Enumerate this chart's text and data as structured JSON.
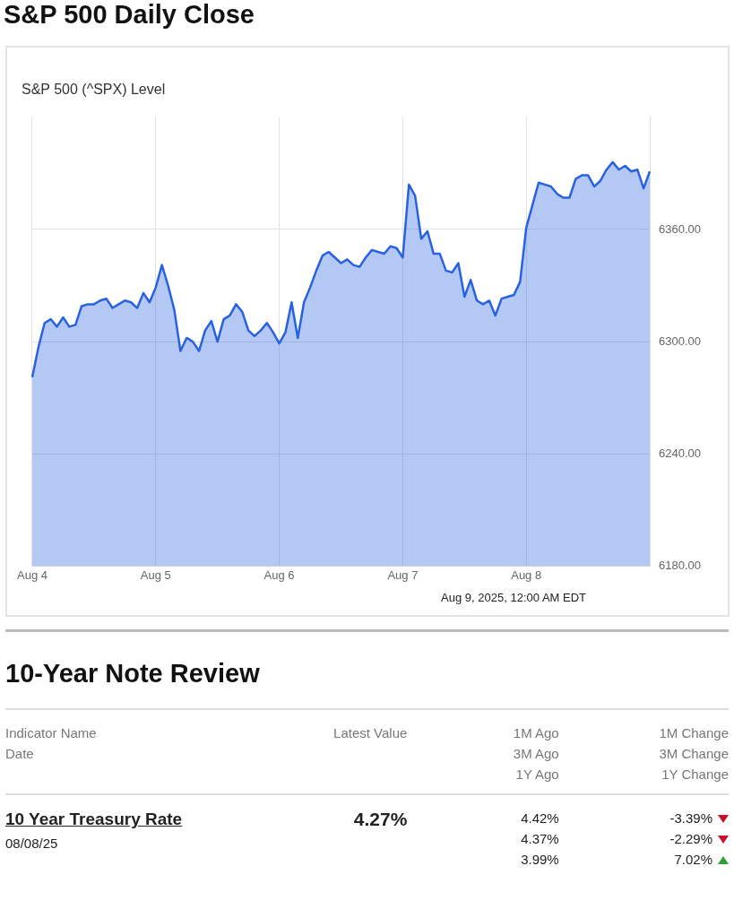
{
  "chart_data": [
    {
      "type": "area",
      "title": "S&P 500 Daily Close",
      "subtitle": "S&P 500 (^SPX) Level",
      "categories": [
        "Aug 4",
        null,
        null,
        null,
        null,
        null,
        null,
        null,
        null,
        null,
        null,
        null,
        null,
        null,
        null,
        null,
        null,
        null,
        null,
        null,
        "Aug 5",
        null,
        null,
        null,
        null,
        null,
        null,
        null,
        null,
        null,
        null,
        null,
        null,
        null,
        null,
        null,
        null,
        null,
        null,
        null,
        "Aug 6",
        null,
        null,
        null,
        null,
        null,
        null,
        null,
        null,
        null,
        null,
        null,
        null,
        null,
        null,
        null,
        null,
        null,
        null,
        null,
        "Aug 7",
        null,
        null,
        null,
        null,
        null,
        null,
        null,
        null,
        null,
        null,
        null,
        null,
        null,
        null,
        null,
        null,
        null,
        null,
        null,
        "Aug 8",
        null,
        null,
        null,
        null,
        null,
        null,
        null,
        null,
        null,
        null,
        null,
        null,
        null,
        null,
        null,
        null,
        null,
        null,
        null,
        null
      ],
      "series": [
        {
          "color": "#2962e0",
          "values": [
            6281,
            6297,
            6310,
            6312,
            6308,
            6313,
            6308,
            6309,
            6319,
            6320,
            6320,
            6322,
            6323,
            6318,
            6320,
            6322,
            6321,
            6318,
            6326,
            6321,
            6329,
            6341,
            6330,
            6317,
            6295,
            6302,
            6300,
            6295,
            6306,
            6311,
            6300,
            6312,
            6314,
            6320,
            6316,
            6306,
            6303,
            6306,
            6310,
            6305,
            6299,
            6305,
            6321,
            6302,
            6321,
            6329,
            6338,
            6346,
            6348,
            6345,
            6342,
            6344,
            6341,
            6340,
            6345,
            6349,
            6348,
            6347,
            6351,
            6350,
            6345,
            6384,
            6378,
            6355,
            6359,
            6347,
            6347,
            6338,
            6337,
            6342,
            6324,
            6333,
            6322,
            6320,
            6322,
            6314,
            6323,
            6324,
            6325,
            6332,
            6361,
            6373,
            6385,
            6384,
            6383,
            6379,
            6377,
            6377,
            6387,
            6389,
            6389,
            6383,
            6386,
            6392,
            6396,
            6392,
            6394,
            6391,
            6392,
            6382,
            6391
          ]
        }
      ],
      "ylim": [
        6180,
        6420
      ],
      "yticks": [
        {
          "value": 6180,
          "label": "6180.00"
        },
        {
          "value": 6240,
          "label": "6240.00"
        },
        {
          "value": 6300,
          "label": "6300.00"
        },
        {
          "value": 6360,
          "label": "6360.00"
        }
      ],
      "grid": true,
      "legend": false,
      "marker": "none",
      "line_style": "solid",
      "annotations": [
        "Aug 9, 2025, 12:00 AM EDT"
      ]
    },
    {
      "type": "other",
      "title": "10-Year Note Review",
      "annotations": [
        "Indicator Name",
        "Date",
        "Latest Value",
        "1M Ago",
        "3M Ago",
        "1Y Ago",
        "1M Change",
        "3M Change",
        "1Y Change",
        "10 Year Treasury Rate",
        "08/08/25",
        "4.27%",
        "4.42%",
        "4.37%",
        "3.99%",
        "-3.39%",
        "-2.29%",
        "7.02%"
      ]
    }
  ]
}
